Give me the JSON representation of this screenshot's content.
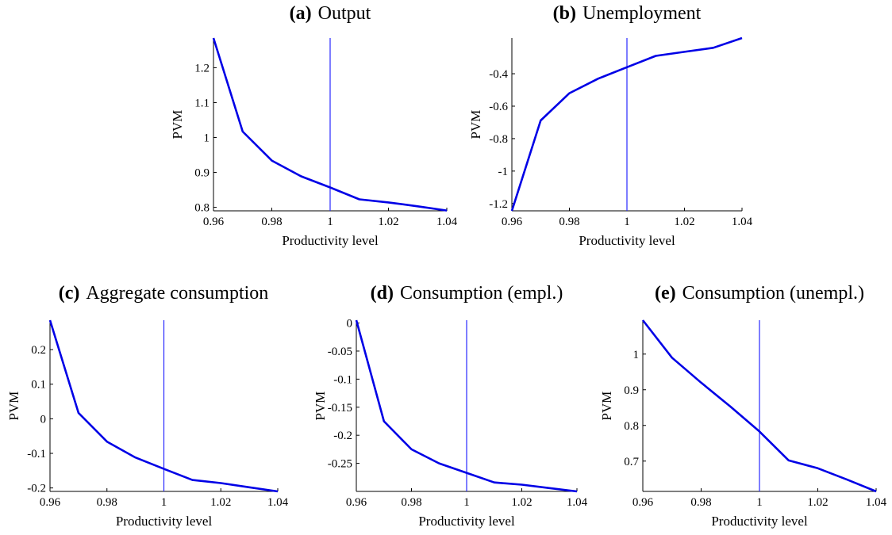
{
  "chart_data": [
    {
      "type": "line",
      "panel": "(a)",
      "title": "Output",
      "xlabel": "Productivity level",
      "ylabel": "PVM",
      "xlim": [
        0.96,
        1.04
      ],
      "ylim": [
        0.79,
        1.285
      ],
      "xticks": [
        0.96,
        0.98,
        1,
        1.02,
        1.04
      ],
      "xtick_labels": [
        "0.96",
        "0.98",
        "1",
        "1.02",
        "1.04"
      ],
      "yticks": [
        0.8,
        0.9,
        1,
        1.1,
        1.2
      ],
      "ytick_labels": [
        "0.8",
        "0.9",
        "1",
        "1.1",
        "1.2"
      ],
      "vline_x": 1,
      "series": [
        {
          "x": [
            0.96,
            0.97,
            0.98,
            0.99,
            1.0,
            1.01,
            1.02,
            1.03,
            1.04
          ],
          "y": [
            1.285,
            1.017,
            0.934,
            0.889,
            0.857,
            0.823,
            0.814,
            0.803,
            0.791
          ]
        }
      ],
      "grid": false
    },
    {
      "type": "line",
      "panel": "(b)",
      "title": "Unemployment",
      "xlabel": "Productivity level",
      "ylabel": "PVM",
      "xlim": [
        0.96,
        1.04
      ],
      "ylim": [
        -1.245,
        -0.18
      ],
      "xticks": [
        0.96,
        0.98,
        1,
        1.02,
        1.04
      ],
      "xtick_labels": [
        "0.96",
        "0.98",
        "1",
        "1.02",
        "1.04"
      ],
      "yticks": [
        -1.2,
        -1,
        -0.8,
        -0.6,
        -0.4
      ],
      "ytick_labels": [
        "-1.2",
        "-1",
        "-0.8",
        "-0.6",
        "-0.4"
      ],
      "vline_x": 1,
      "series": [
        {
          "x": [
            0.96,
            0.97,
            0.98,
            0.99,
            1.0,
            1.01,
            1.02,
            1.03,
            1.04
          ],
          "y": [
            -1.245,
            -0.688,
            -0.52,
            -0.43,
            -0.36,
            -0.29,
            -0.265,
            -0.24,
            -0.18
          ]
        }
      ],
      "grid": false
    },
    {
      "type": "line",
      "panel": "(c)",
      "title": "Aggregate consumption",
      "xlabel": "Productivity level",
      "ylabel": "PVM",
      "xlim": [
        0.96,
        1.04
      ],
      "ylim": [
        -0.21,
        0.285
      ],
      "xticks": [
        0.96,
        0.98,
        1,
        1.02,
        1.04
      ],
      "xtick_labels": [
        "0.96",
        "0.98",
        "1",
        "1.02",
        "1.04"
      ],
      "yticks": [
        -0.2,
        -0.1,
        0,
        0.1,
        0.2
      ],
      "ytick_labels": [
        "-0.2",
        "-0.1",
        "0",
        "0.1",
        "0.2"
      ],
      "vline_x": 1,
      "series": [
        {
          "x": [
            0.96,
            0.97,
            0.98,
            0.99,
            1.0,
            1.01,
            1.02,
            1.03,
            1.04
          ],
          "y": [
            0.285,
            0.017,
            -0.066,
            -0.112,
            -0.145,
            -0.177,
            -0.186,
            -0.198,
            -0.21
          ]
        }
      ],
      "grid": false
    },
    {
      "type": "line",
      "panel": "(d)",
      "title": "Consumption (empl.)",
      "xlabel": "Productivity level",
      "ylabel": "PVM",
      "xlim": [
        0.96,
        1.04
      ],
      "ylim": [
        -0.3,
        0.005
      ],
      "xticks": [
        0.96,
        0.98,
        1,
        1.02,
        1.04
      ],
      "xtick_labels": [
        "0.96",
        "0.98",
        "1",
        "1.02",
        "1.04"
      ],
      "yticks": [
        -0.25,
        -0.2,
        -0.15,
        -0.1,
        -0.05,
        0
      ],
      "ytick_labels": [
        "-0.25",
        "-0.2",
        "-0.15",
        "-0.1",
        "-0.05",
        "0"
      ],
      "vline_x": 1,
      "series": [
        {
          "x": [
            0.96,
            0.97,
            0.98,
            0.99,
            1.0,
            1.01,
            1.02,
            1.03,
            1.04
          ],
          "y": [
            0.005,
            -0.175,
            -0.225,
            -0.25,
            -0.267,
            -0.284,
            -0.288,
            -0.294,
            -0.3
          ]
        }
      ],
      "grid": false
    },
    {
      "type": "line",
      "panel": "(e)",
      "title": "Consumption (unempl.)",
      "xlabel": "Productivity level",
      "ylabel": "PVM",
      "xlim": [
        0.96,
        1.04
      ],
      "ylim": [
        0.615,
        1.095
      ],
      "xticks": [
        0.96,
        0.98,
        1,
        1.02,
        1.04
      ],
      "xtick_labels": [
        "0.96",
        "0.98",
        "1",
        "1.02",
        "1.04"
      ],
      "yticks": [
        0.7,
        0.8,
        0.9,
        1
      ],
      "ytick_labels": [
        "0.7",
        "0.8",
        "0.9",
        "1"
      ],
      "vline_x": 1,
      "series": [
        {
          "x": [
            0.96,
            0.97,
            0.98,
            0.99,
            1.0,
            1.01,
            1.02,
            1.03,
            1.04
          ],
          "y": [
            1.095,
            0.99,
            0.92,
            0.853,
            0.783,
            0.702,
            0.68,
            0.648,
            0.615
          ]
        }
      ],
      "grid": false
    }
  ],
  "colors": {
    "series": "#0000e6",
    "reference_line": "#2929ff",
    "axes": "#000000"
  }
}
